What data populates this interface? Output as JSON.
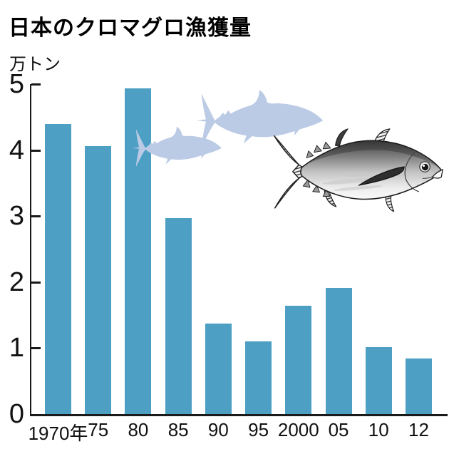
{
  "header": {
    "title": "日本のクロマグロ漁獲量",
    "unit_label": "万トン"
  },
  "chart_data": {
    "type": "bar",
    "title": "日本のクロマグロ漁獲量",
    "ylabel": "万トン",
    "xlabel": "",
    "categories": [
      "1970年",
      "75",
      "80",
      "85",
      "90",
      "95",
      "2000",
      "05",
      "10",
      "12"
    ],
    "values": [
      4.39,
      4.06,
      4.94,
      2.97,
      1.37,
      1.1,
      1.64,
      1.91,
      1.02,
      0.84
    ],
    "ylim": [
      0,
      5
    ],
    "yticks": [
      0,
      1,
      2,
      3,
      4,
      5
    ],
    "grid": false,
    "legend": null,
    "bar_color": "#4d9fc4",
    "axis_color": "#1a1a1a",
    "text_color": "#111111"
  },
  "decorations": {
    "silhouette_color": "#bccbe5",
    "items": [
      {
        "name": "tuna-silhouette-small"
      },
      {
        "name": "tuna-silhouette-large"
      },
      {
        "name": "bluefin-tuna-illustration"
      }
    ]
  }
}
